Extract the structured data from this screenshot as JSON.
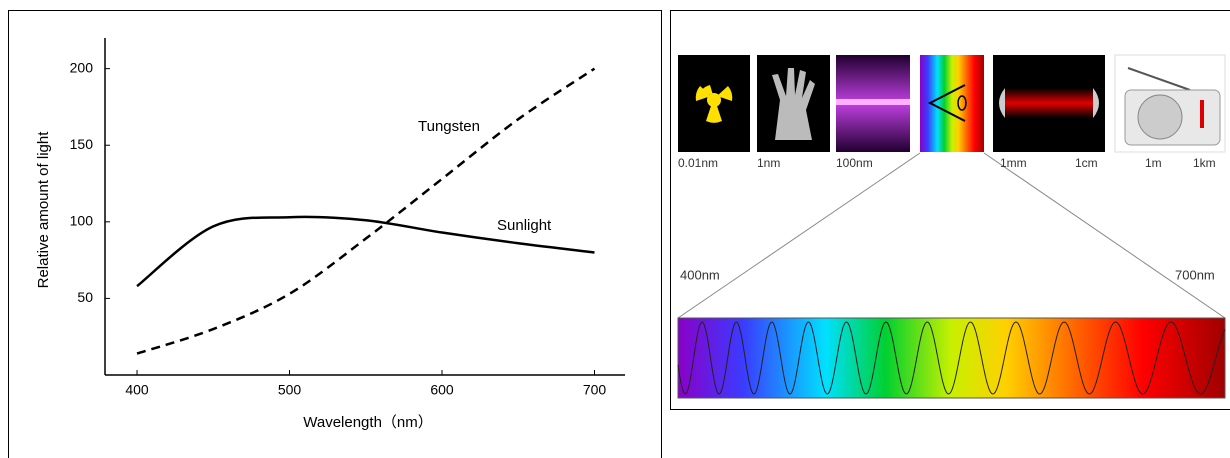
{
  "chart_data": {
    "type": "line",
    "x_label": "Wavelength（nm）",
    "y_label": "Relative amount of light",
    "x": [
      400,
      450,
      500,
      550,
      600,
      650,
      700
    ],
    "series": [
      {
        "name": "Sunlight",
        "color": "#000000",
        "dashed": false,
        "values": [
          58,
          97,
          103,
          101,
          93,
          86,
          80
        ]
      },
      {
        "name": "Tungsten",
        "color": "#000000",
        "dashed": true,
        "values": [
          14,
          30,
          53,
          89,
          128,
          167,
          200
        ]
      }
    ],
    "xlim": [
      379,
      720
    ],
    "xticks": [
      400,
      500,
      600,
      700
    ],
    "ylim": [
      0,
      220
    ],
    "yticks": [
      50,
      100,
      150,
      200
    ],
    "grid": false
  },
  "diagram": {
    "scale_labels": [
      "0.01nm",
      "1nm",
      "100nm",
      "1mm",
      "1cm",
      "1m",
      "1km"
    ],
    "range_start": "400nm",
    "range_end": "700nm"
  }
}
